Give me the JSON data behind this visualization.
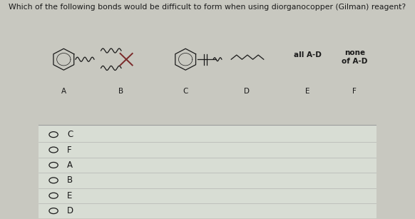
{
  "title": "Which of the following bonds would be difficult to form when using diorganocopper (Gilman) reagent?",
  "bg_color_top": "#c8c8c0",
  "bg_color_bottom": "#d8ddd4",
  "options": [
    "C",
    "F",
    "A",
    "B",
    "E",
    "D"
  ],
  "label_E": "all A-D",
  "label_F": "none\nof A-D",
  "dark": "#1a1a1a",
  "red_brown": "#7a2a2a"
}
